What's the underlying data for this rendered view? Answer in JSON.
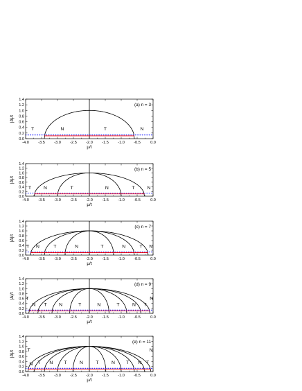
{
  "chart_data": [
    {
      "type": "line",
      "panel_label": "(a) n = 3",
      "xlabel": "μ/t",
      "ylabel": "|Δ|/t",
      "xlim": [
        -4.0,
        0.0
      ],
      "ylim": [
        0.0,
        1.4
      ],
      "xticks": [
        "-4.0",
        "-3.5",
        "-3.0",
        "-2.5",
        "-2.0",
        "-1.5",
        "-1.0",
        "-0.5",
        "0.0"
      ],
      "yticks": [
        "0.0",
        "0.2",
        "0.4",
        "0.6",
        "0.8",
        "1.0",
        "1.2",
        "1.4"
      ],
      "boundary_roots": [
        -3.414,
        -0.586
      ],
      "peak_y": 1.0,
      "center_x": -2.0,
      "red_line": {
        "y": 0.1,
        "x_range": [
          -3.414,
          -0.586
        ]
      },
      "blue_dotted_line": {
        "y": 0.13,
        "x_range": [
          -4.0,
          0.0
        ]
      },
      "regions": [
        {
          "text": "T",
          "x": -3.78,
          "y": 0.3
        },
        {
          "text": "N",
          "x": -2.85,
          "y": 0.3
        },
        {
          "text": "T",
          "x": -1.5,
          "y": 0.3
        },
        {
          "text": "N",
          "x": -0.35,
          "y": 0.3
        }
      ]
    },
    {
      "type": "line",
      "panel_label": "(b) n = 5",
      "xlabel": "μ/t",
      "ylabel": "|Δ|/t",
      "xlim": [
        -4.0,
        0.0
      ],
      "ylim": [
        0.0,
        1.4
      ],
      "xticks": [
        "-4.0",
        "-3.5",
        "-3.0",
        "-2.5",
        "-2.0",
        "-1.5",
        "-1.0",
        "-0.5",
        "0.0"
      ],
      "yticks": [
        "0.0",
        "0.2",
        "0.4",
        "0.6",
        "0.8",
        "1.0",
        "1.2",
        "1.4"
      ],
      "boundary_roots": [
        -3.732,
        -3.0,
        -1.0,
        -0.268
      ],
      "peak_y": 1.0,
      "center_x": -2.0,
      "red_line": {
        "y": 0.1,
        "x_range": [
          -3.732,
          -0.268
        ]
      },
      "blue_dotted_line": {
        "y": 0.13,
        "x_range": [
          -4.0,
          0.0
        ]
      },
      "regions": [
        {
          "text": "T",
          "x": -3.87,
          "y": 0.3
        },
        {
          "text": "N",
          "x": -3.38,
          "y": 0.3
        },
        {
          "text": "T",
          "x": -2.55,
          "y": 0.3
        },
        {
          "text": "N",
          "x": -1.45,
          "y": 0.3
        },
        {
          "text": "T",
          "x": -0.62,
          "y": 0.3
        },
        {
          "text": "N",
          "x": -0.13,
          "y": 0.3
        }
      ]
    },
    {
      "type": "line",
      "panel_label": "(c) n = 7",
      "xlabel": "μ/t",
      "ylabel": "|Δ|/t",
      "xlim": [
        -4.0,
        0.0
      ],
      "ylim": [
        0.0,
        1.4
      ],
      "xticks": [
        "-4.0",
        "-3.5",
        "-3.0",
        "-2.5",
        "-2.0",
        "-1.5",
        "-1.0",
        "-0.5",
        "0.0"
      ],
      "yticks": [
        "0.0",
        "0.2",
        "0.4",
        "0.6",
        "0.8",
        "1.0",
        "1.2",
        "1.4"
      ],
      "boundary_roots": [
        -3.848,
        -3.414,
        -2.765,
        -1.235,
        -0.586,
        -0.152
      ],
      "peak_y": 1.0,
      "center_x": -2.0,
      "red_line": {
        "y": 0.1,
        "x_range": [
          -3.848,
          -0.152
        ]
      },
      "blue_dotted_line": {
        "y": 0.13,
        "x_range": [
          -4.0,
          0.0
        ]
      },
      "regions": [
        {
          "text": "T",
          "x": -3.93,
          "y": 0.3
        },
        {
          "text": "N",
          "x": -3.62,
          "y": 0.3
        },
        {
          "text": "T",
          "x": -3.08,
          "y": 0.3
        },
        {
          "text": "N",
          "x": -2.4,
          "y": 0.3
        },
        {
          "text": "T",
          "x": -1.6,
          "y": 0.3
        },
        {
          "text": "N",
          "x": -0.92,
          "y": 0.3
        },
        {
          "text": "T",
          "x": -0.38,
          "y": 0.3
        },
        {
          "text": "N",
          "x": -0.07,
          "y": 0.3
        }
      ]
    },
    {
      "type": "line",
      "panel_label": "(d) n = 9",
      "xlabel": "μ/t",
      "ylabel": "|Δ|/t",
      "xlim": [
        -4.0,
        0.0
      ],
      "ylim": [
        0.0,
        1.4
      ],
      "xticks": [
        "-4.0",
        "-3.5",
        "-3.0",
        "-2.5",
        "-2.0",
        "-1.5",
        "-1.0",
        "-0.5",
        "0.0"
      ],
      "yticks": [
        "0.0",
        "0.2",
        "0.4",
        "0.6",
        "0.8",
        "1.0",
        "1.2",
        "1.4"
      ],
      "boundary_roots": [
        -3.902,
        -3.618,
        -3.176,
        -2.618,
        -1.382,
        -0.824,
        -0.382,
        -0.098
      ],
      "peak_y": 1.0,
      "center_x": -2.0,
      "red_line": {
        "y": 0.1,
        "x_range": [
          -3.902,
          -0.098
        ]
      },
      "blue_dotted_line": {
        "y": 0.13,
        "x_range": [
          -4.0,
          0.0
        ]
      },
      "regions": [
        {
          "text": "T",
          "x": -3.95,
          "y": 0.55
        },
        {
          "text": "N",
          "x": -3.74,
          "y": 0.3
        },
        {
          "text": "T",
          "x": -3.38,
          "y": 0.3
        },
        {
          "text": "N",
          "x": -2.9,
          "y": 0.3
        },
        {
          "text": "T",
          "x": -2.3,
          "y": 0.3
        },
        {
          "text": "N",
          "x": -1.7,
          "y": 0.3
        },
        {
          "text": "T",
          "x": -1.1,
          "y": 0.3
        },
        {
          "text": "N",
          "x": -0.6,
          "y": 0.3
        },
        {
          "text": "T",
          "x": -0.25,
          "y": 0.3
        },
        {
          "text": "N",
          "x": -0.05,
          "y": 0.55
        }
      ]
    },
    {
      "type": "line",
      "panel_label": "(e) n = 11",
      "xlabel": "μ/t",
      "ylabel": "|Δ|/t",
      "xlim": [
        -4.0,
        0.0
      ],
      "ylim": [
        0.0,
        1.4
      ],
      "xticks": [
        "-4.0",
        "-3.5",
        "-3.0",
        "-2.5",
        "-2.0",
        "-1.5",
        "-1.0",
        "-0.5",
        "0.0"
      ],
      "yticks": [
        "0.0",
        "0.2",
        "0.4",
        "0.6",
        "0.8",
        "1.0",
        "1.2",
        "1.4"
      ],
      "boundary_roots": [
        -3.932,
        -3.732,
        -3.414,
        -3.0,
        -2.518,
        -1.482,
        -1.0,
        -0.586,
        -0.268,
        -0.068
      ],
      "peak_y": 1.0,
      "center_x": -2.0,
      "red_line": {
        "y": 0.1,
        "x_range": [
          -3.932,
          -0.068
        ]
      },
      "blue_dotted_line": {
        "y": 0.13,
        "x_range": [
          -4.0,
          0.0
        ]
      },
      "regions": [
        {
          "text": "T",
          "x": -3.9,
          "y": 0.8
        },
        {
          "text": "N",
          "x": -3.83,
          "y": 0.25
        },
        {
          "text": "T",
          "x": -3.58,
          "y": 0.3
        },
        {
          "text": "N",
          "x": -3.2,
          "y": 0.3
        },
        {
          "text": "T",
          "x": -2.75,
          "y": 0.3
        },
        {
          "text": "N",
          "x": -2.25,
          "y": 0.3
        },
        {
          "text": "T",
          "x": -1.75,
          "y": 0.3
        },
        {
          "text": "N",
          "x": -1.25,
          "y": 0.3
        },
        {
          "text": "T",
          "x": -0.8,
          "y": 0.3
        },
        {
          "text": "N",
          "x": -0.42,
          "y": 0.3
        },
        {
          "text": "T",
          "x": -0.17,
          "y": 0.3
        },
        {
          "text": "N",
          "x": -0.06,
          "y": 0.8
        }
      ]
    }
  ]
}
